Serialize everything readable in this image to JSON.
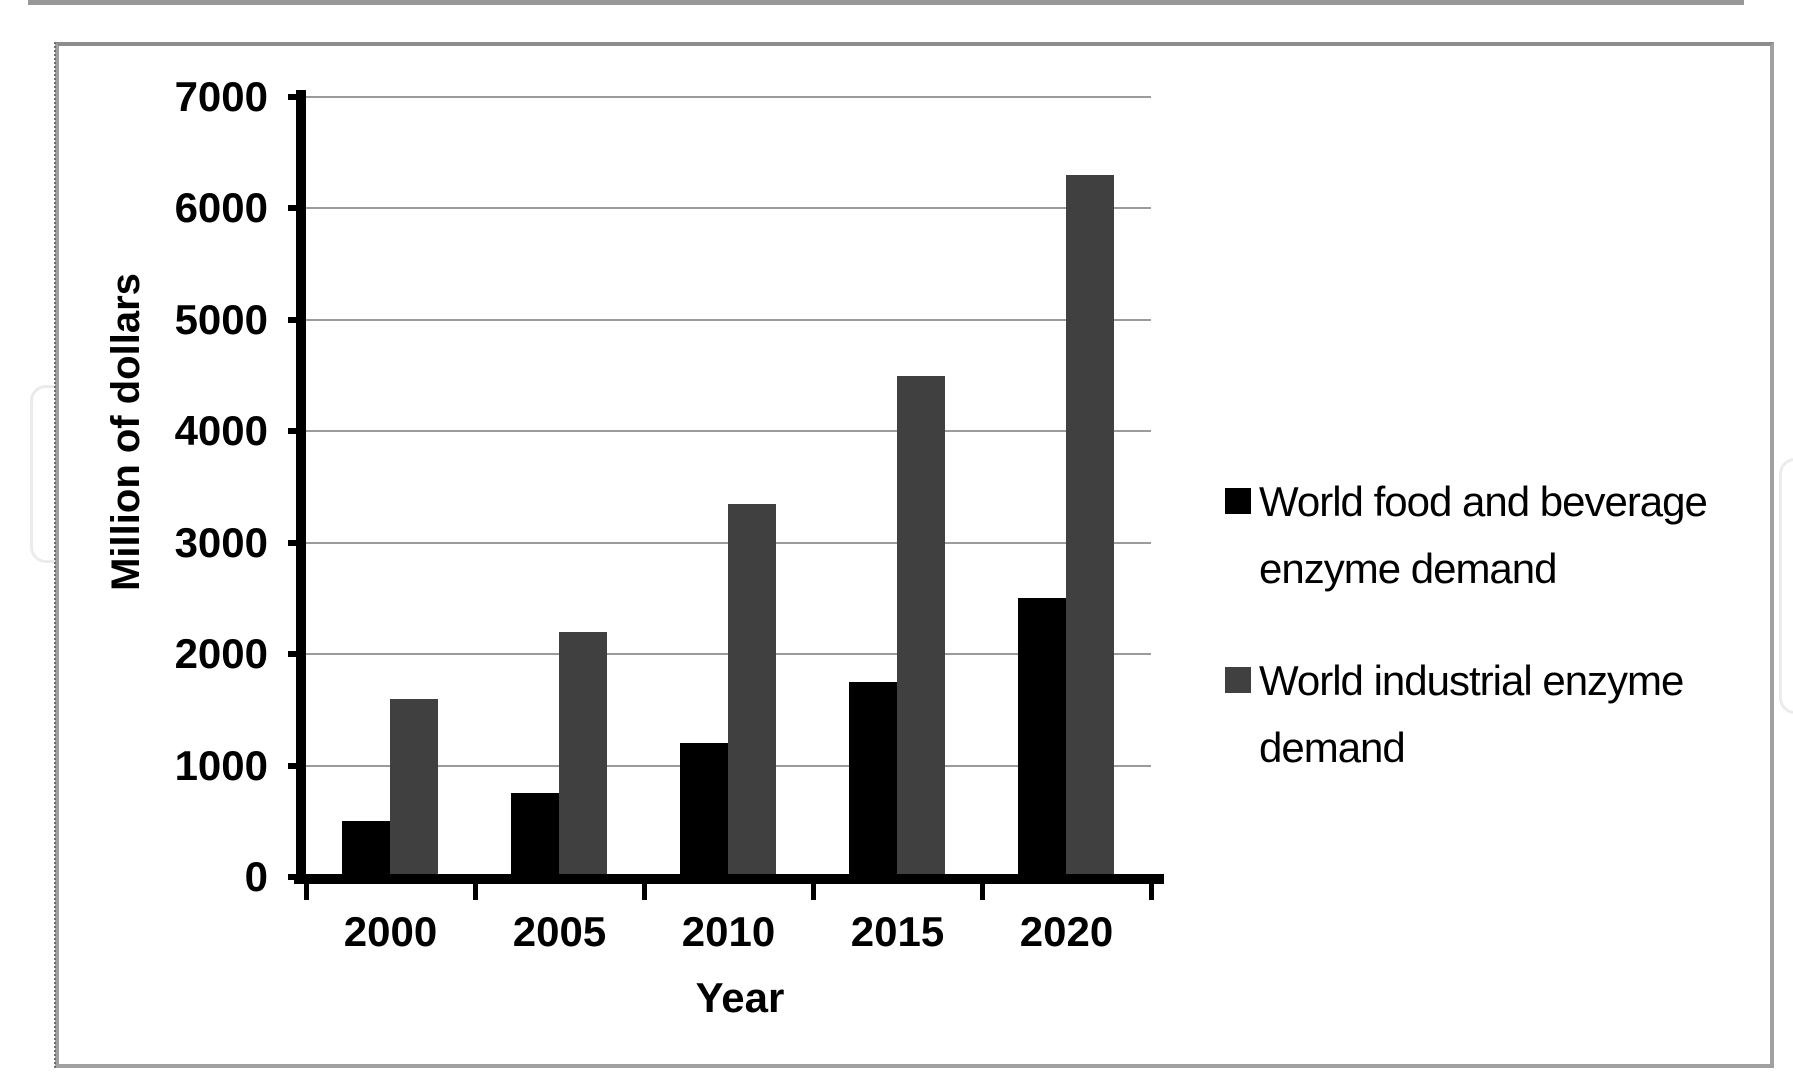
{
  "chart_data": {
    "type": "bar",
    "title": "",
    "categories": [
      "2000",
      "2005",
      "2010",
      "2015",
      "2020"
    ],
    "series": [
      {
        "name": "World food and beverage enzyme demand",
        "color": "#000000",
        "values": [
          500,
          750,
          1200,
          1750,
          2500
        ]
      },
      {
        "name": "World industrial enzyme demand",
        "color": "#404040",
        "values": [
          1600,
          2200,
          3350,
          4500,
          6300
        ]
      }
    ],
    "xlabel": "Year",
    "ylabel": "Million of dollars",
    "ylim": [
      0,
      7000
    ],
    "ytick_interval": 1000,
    "grid": "horizontal",
    "legend_position": "right",
    "gridline_color": "#9b9b9b",
    "axis_color": "#000000"
  },
  "legend": {
    "items": [
      {
        "lines": [
          "World food and beverage",
          "enzyme demand"
        ]
      },
      {
        "lines": [
          "World industrial enzyme",
          "demand"
        ]
      }
    ]
  }
}
